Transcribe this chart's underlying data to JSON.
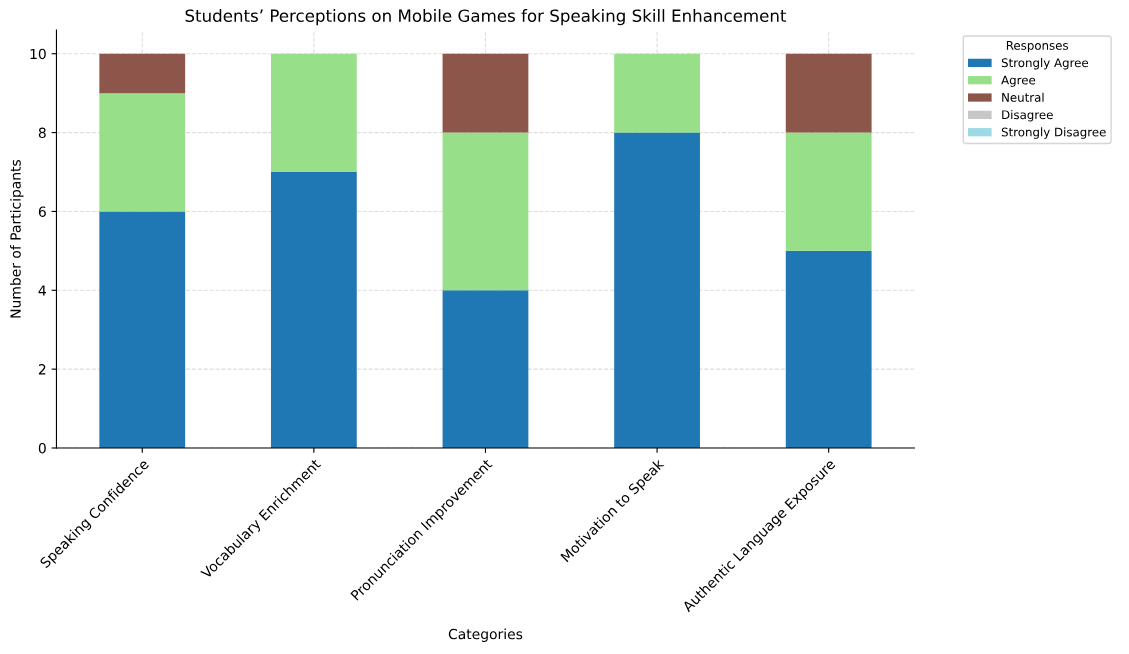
{
  "chart_data": {
    "type": "bar",
    "stacked": true,
    "title": "Students’ Perceptions on Mobile Games for Speaking Skill Enhancement",
    "xlabel": "Categories",
    "ylabel": "Number of Participants",
    "legend_title": "Responses",
    "legend": "top right",
    "grid": true,
    "categories": [
      "Speaking Confidence",
      "Vocabulary Enrichment",
      "Pronunciation Improvement",
      "Motivation to Speak",
      "Authentic Language Exposure"
    ],
    "series": [
      {
        "name": "Strongly Agree",
        "color": "#1f77b4",
        "values": [
          6,
          7,
          4,
          8,
          5
        ]
      },
      {
        "name": "Agree",
        "color": "#98df8a",
        "values": [
          3,
          3,
          4,
          2,
          3
        ]
      },
      {
        "name": "Neutral",
        "color": "#8c564b",
        "values": [
          1,
          0,
          2,
          0,
          2
        ]
      },
      {
        "name": "Disagree",
        "color": "#c7c7c7",
        "values": [
          0,
          0,
          0,
          0,
          0
        ]
      },
      {
        "name": "Strongly Disagree",
        "color": "#9edae5",
        "values": [
          0,
          0,
          0,
          0,
          0
        ]
      }
    ],
    "ylim": [
      0,
      10.6
    ],
    "yticks": [
      0,
      2,
      4,
      6,
      8,
      10
    ]
  }
}
